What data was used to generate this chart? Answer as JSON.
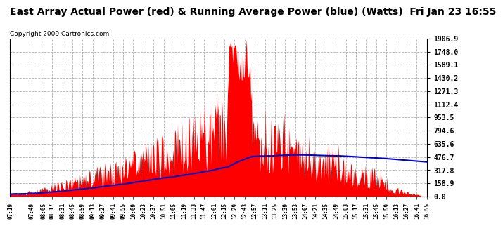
{
  "title": "East Array Actual Power (red) & Running Average Power (blue) (Watts)  Fri Jan 23 16:55",
  "copyright": "Copyright 2009 Cartronics.com",
  "ylabel_right": [
    "1906.9",
    "1748.0",
    "1589.1",
    "1430.2",
    "1271.3",
    "1112.4",
    "953.5",
    "794.6",
    "635.6",
    "476.7",
    "317.8",
    "158.9",
    "0.0"
  ],
  "ymax": 1906.9,
  "ymin": 0.0,
  "x_labels": [
    "07:19",
    "07:49",
    "08:05",
    "08:17",
    "08:31",
    "08:45",
    "08:59",
    "09:13",
    "09:27",
    "09:41",
    "09:55",
    "10:09",
    "10:23",
    "10:37",
    "10:51",
    "11:05",
    "11:19",
    "11:33",
    "11:47",
    "12:01",
    "12:15",
    "12:29",
    "12:43",
    "12:57",
    "13:11",
    "13:25",
    "13:39",
    "13:53",
    "14:07",
    "14:21",
    "14:35",
    "14:49",
    "15:03",
    "15:17",
    "15:31",
    "15:45",
    "15:59",
    "16:13",
    "16:27",
    "16:41",
    "16:55"
  ],
  "background_color": "#ffffff",
  "plot_background": "#ffffff",
  "grid_color": "#b0b0b0",
  "actual_color": "#ff0000",
  "average_color": "#0000cc",
  "title_fontsize": 10,
  "copyright_fontsize": 6.5
}
